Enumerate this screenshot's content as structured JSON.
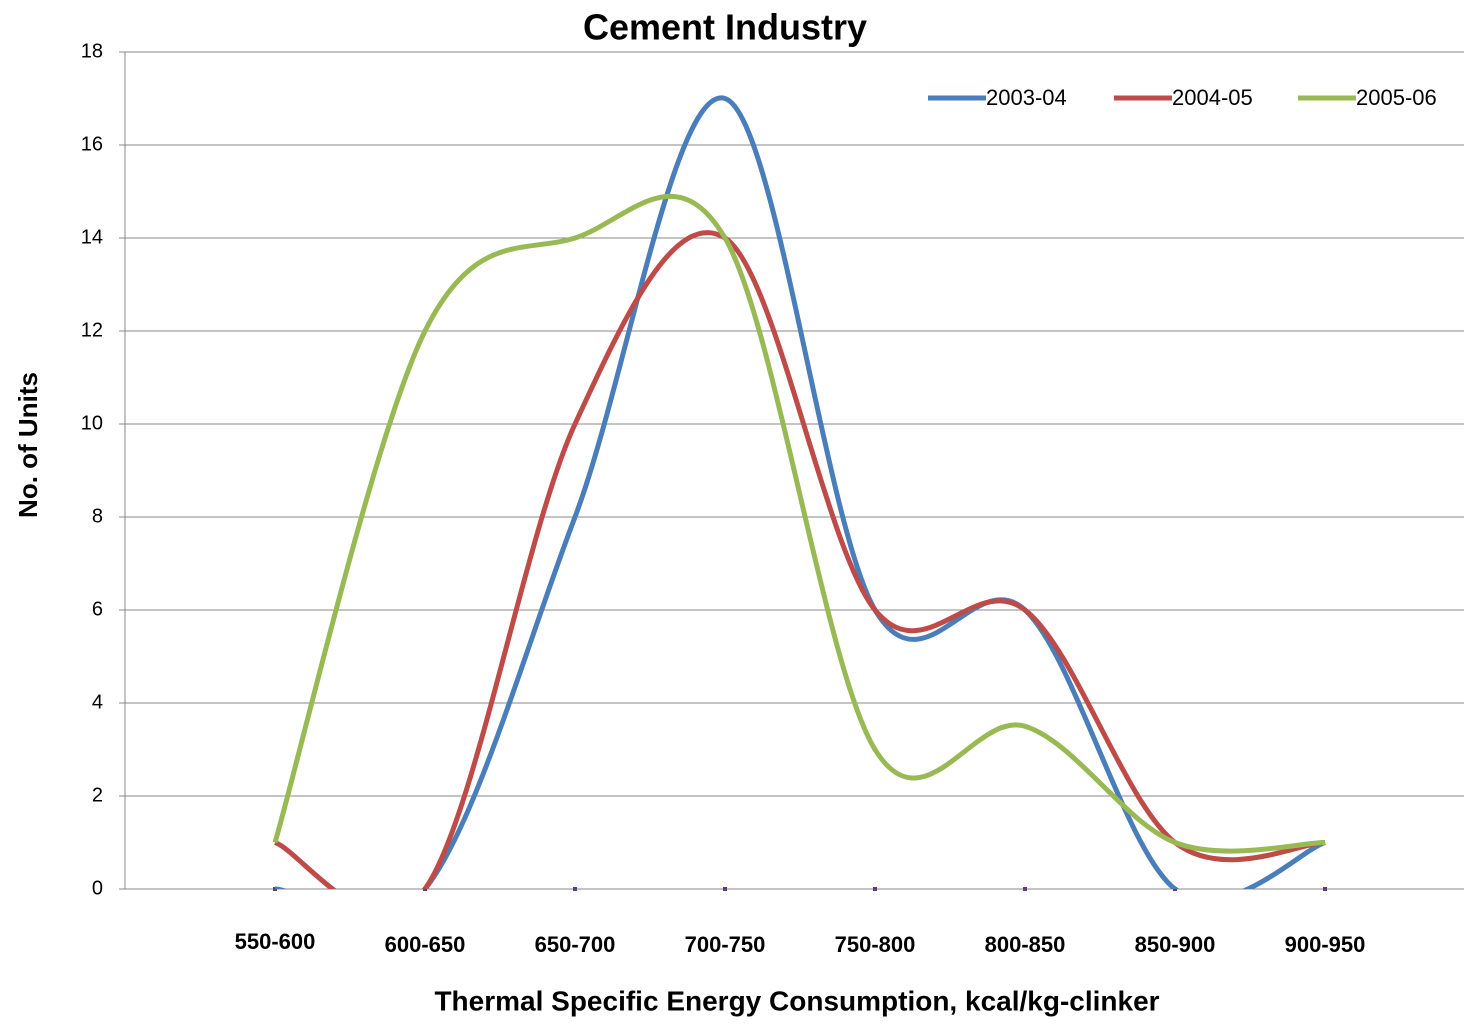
{
  "chart_data": {
    "type": "line",
    "title": "Cement Industry",
    "x_label": "Thermal Specific Energy Consumption, kcal/kg-clinker",
    "y_label": "No. of Units",
    "categories": [
      "550-600",
      "600-650",
      "650-700",
      "700-750",
      "750-800",
      "800-850",
      "850-900",
      "900-950"
    ],
    "series": [
      {
        "name": "2003-04",
        "color": "#4a7ebb",
        "values": [
          0,
          0,
          8,
          17,
          6,
          6,
          0,
          1
        ]
      },
      {
        "name": "2004-05",
        "color": "#be4b48",
        "values": [
          1,
          0,
          10,
          14,
          6,
          6,
          1,
          1
        ]
      },
      {
        "name": "2005-06",
        "color": "#98b954",
        "values": [
          1,
          12,
          14,
          14,
          3,
          3.5,
          1,
          1
        ]
      }
    ],
    "ylim": [
      0,
      18
    ],
    "yticks": [
      0,
      2,
      4,
      6,
      8,
      10,
      12,
      14,
      16,
      18
    ],
    "grid": true,
    "smooth": true,
    "legend": "top-right"
  }
}
